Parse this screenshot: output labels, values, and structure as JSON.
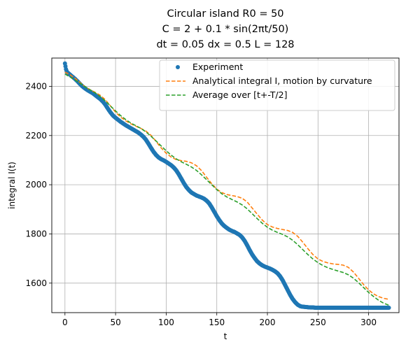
{
  "chart_data": {
    "type": "line",
    "title_lines": [
      "Circular island R0 = 50",
      "C = 2 + 0.1 * sin(2πt/50)",
      "dt = 0.05 dx = 0.5 L = 128"
    ],
    "xlabel": "t",
    "ylabel": "integral I(t)",
    "xlim": [
      -13,
      330
    ],
    "ylim": [
      1480,
      2515
    ],
    "xticks": [
      0,
      50,
      100,
      150,
      200,
      250,
      300
    ],
    "yticks": [
      1600,
      1800,
      2000,
      2200,
      2400
    ],
    "grid": true,
    "legend_position": "top-right",
    "series": [
      {
        "name": "Experiment",
        "style": "markers",
        "color": "#1f77b4",
        "x": [
          0,
          1,
          2,
          4,
          6,
          8,
          10,
          12.5,
          15,
          17.5,
          20,
          22.5,
          25,
          27.5,
          30,
          32.5,
          35,
          37.5,
          40,
          42.5,
          45,
          47.5,
          50,
          52.5,
          55,
          57.5,
          60,
          62.5,
          65,
          67.5,
          70,
          72.5,
          75,
          77.5,
          80,
          82.5,
          85,
          87.5,
          90,
          92.5,
          95,
          97.5,
          100,
          102.5,
          105,
          107.5,
          110,
          112.5,
          115,
          117.5,
          120,
          122.5,
          125,
          127.5,
          130,
          132.5,
          135,
          137.5,
          140,
          142.5,
          145,
          147.5,
          150,
          152.5,
          155,
          157.5,
          160,
          162.5,
          165,
          167.5,
          170,
          172.5,
          175,
          177.5,
          180,
          182.5,
          185,
          187.5,
          190,
          192.5,
          195,
          197.5,
          200,
          202.5,
          205,
          207.5,
          210,
          212.5,
          215,
          217.5,
          220,
          222.5,
          225,
          227.5,
          230,
          232.5,
          235,
          237.5,
          240,
          242.5,
          245,
          247.5,
          250,
          252.5,
          255,
          257.5,
          260,
          262.5,
          265,
          267.5,
          270,
          272.5,
          275,
          277.5,
          280,
          282.5,
          285,
          287.5,
          290,
          292.5,
          295,
          297.5,
          300,
          302.5,
          305,
          307.5,
          310,
          312.5,
          315,
          317.5,
          320
        ],
        "y": [
          2493,
          2470,
          2458,
          2451,
          2444,
          2437,
          2430,
          2420,
          2409,
          2399,
          2391,
          2384,
          2378,
          2372,
          2364,
          2356,
          2348,
          2338,
          2325,
          2309,
          2294,
          2281,
          2272,
          2264,
          2256,
          2249,
          2242,
          2236,
          2230,
          2224,
          2218,
          2212,
          2204,
          2195,
          2183,
          2167,
          2150,
          2134,
          2121,
          2111,
          2104,
          2099,
          2093,
          2086,
          2079,
          2070,
          2058,
          2042,
          2024,
          2006,
          1990,
          1978,
          1968,
          1962,
          1956,
          1952,
          1948,
          1943,
          1935,
          1924,
          1908,
          1890,
          1872,
          1856,
          1842,
          1832,
          1824,
          1817,
          1812,
          1808,
          1802,
          1796,
          1786,
          1772,
          1754,
          1734,
          1716,
          1701,
          1688,
          1679,
          1672,
          1667,
          1663,
          1659,
          1654,
          1648,
          1640,
          1628,
          1612,
          1592,
          1572,
          1552,
          1535,
          1522,
          1512,
          1506,
          1504,
          1503,
          1502,
          1501,
          1501,
          1500,
          1500,
          1500,
          1500,
          1500,
          1500,
          1500,
          1500,
          1500,
          1500,
          1500,
          1500,
          1500,
          1500,
          1500,
          1500,
          1500,
          1500,
          1500,
          1500,
          1500,
          1500,
          1500,
          1500,
          1500,
          1500,
          1500,
          1500,
          1500,
          1500
        ]
      },
      {
        "name": "Analytical integral I, motion by curvature",
        "style": "dashed",
        "color": "#ff7f0e",
        "x": [
          0,
          5,
          10,
          15,
          20,
          25,
          30,
          35,
          40,
          45,
          50,
          55,
          60,
          65,
          70,
          75,
          80,
          85,
          90,
          95,
          100,
          105,
          110,
          115,
          120,
          125,
          130,
          135,
          140,
          145,
          150,
          155,
          160,
          165,
          170,
          175,
          180,
          185,
          190,
          195,
          200,
          205,
          210,
          215,
          220,
          225,
          230,
          235,
          240,
          245,
          250,
          255,
          260,
          265,
          270,
          275,
          280,
          285,
          290,
          295,
          300,
          305,
          310,
          315,
          320
        ],
        "y": [
          2458,
          2447,
          2433,
          2415,
          2398,
          2386,
          2375,
          2363,
          2345,
          2320,
          2295,
          2275,
          2260,
          2248,
          2238,
          2229,
          2218,
          2201,
          2176,
          2150,
          2128,
          2112,
          2102,
          2098,
          2095,
          2089,
          2077,
          2057,
          2030,
          2004,
          1982,
          1968,
          1960,
          1956,
          1952,
          1945,
          1930,
          1905,
          1880,
          1856,
          1838,
          1828,
          1822,
          1818,
          1814,
          1806,
          1790,
          1766,
          1740,
          1716,
          1698,
          1688,
          1682,
          1678,
          1676,
          1673,
          1664,
          1645,
          1620,
          1594,
          1572,
          1556,
          1545,
          1538,
          1534
        ]
      },
      {
        "name": "Average over [t+-T/2]",
        "style": "dashed",
        "color": "#2ca02c",
        "x": [
          0,
          5,
          10,
          15,
          20,
          25,
          30,
          35,
          40,
          45,
          50,
          55,
          60,
          65,
          70,
          75,
          80,
          85,
          90,
          95,
          100,
          105,
          110,
          115,
          120,
          125,
          130,
          135,
          140,
          145,
          150,
          155,
          160,
          165,
          170,
          175,
          180,
          185,
          190,
          195,
          200,
          205,
          210,
          215,
          220,
          225,
          230,
          235,
          240,
          245,
          250,
          255,
          260,
          265,
          270,
          275,
          280,
          285,
          290,
          295,
          300,
          305,
          310,
          315,
          320
        ],
        "y": [
          2450,
          2438,
          2426,
          2412,
          2398,
          2385,
          2373,
          2358,
          2340,
          2320,
          2300,
          2281,
          2265,
          2251,
          2240,
          2229,
          2215,
          2197,
          2178,
          2158,
          2138,
          2120,
          2105,
          2093,
          2083,
          2072,
          2058,
          2040,
          2020,
          2000,
          1980,
          1963,
          1950,
          1940,
          1930,
          1918,
          1902,
          1882,
          1862,
          1843,
          1827,
          1815,
          1806,
          1798,
          1788,
          1774,
          1756,
          1736,
          1716,
          1698,
          1683,
          1671,
          1662,
          1655,
          1649,
          1643,
          1634,
          1620,
          1602,
          1582,
          1562,
          1545,
          1530,
          1518,
          1510
        ]
      }
    ]
  }
}
